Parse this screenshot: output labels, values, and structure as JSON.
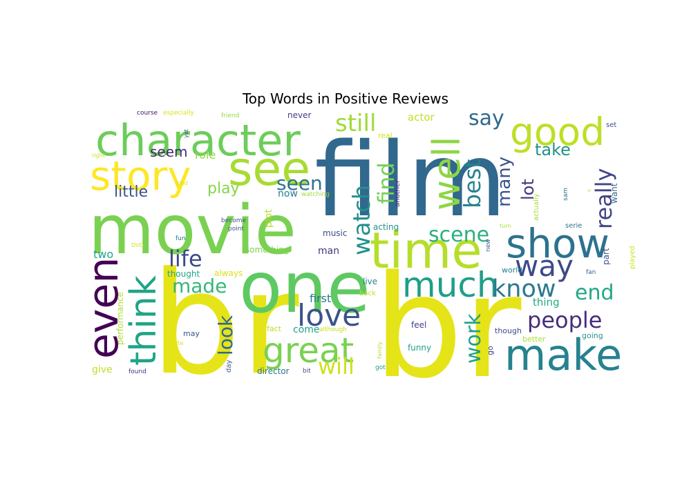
{
  "chart_data": {
    "type": "wordcloud",
    "title": "Top Words in Positive Reviews",
    "background": "#ffffff",
    "words": [
      {
        "text": "br",
        "color": "#e5e419"
      },
      {
        "text": "film",
        "color": "#31688e"
      },
      {
        "text": "movie",
        "color": "#7ad151"
      },
      {
        "text": "one",
        "color": "#5ec962"
      },
      {
        "text": "br",
        "color": "#e5e419"
      },
      {
        "text": "character",
        "color": "#6ccd5a"
      },
      {
        "text": "time",
        "color": "#b5de2b"
      },
      {
        "text": "see",
        "color": "#a8db34"
      },
      {
        "text": "story",
        "color": "#fde725"
      },
      {
        "text": "make",
        "color": "#26828e"
      },
      {
        "text": "show",
        "color": "#2c728e"
      },
      {
        "text": "good",
        "color": "#bddf26"
      },
      {
        "text": "well",
        "color": "#8ed645"
      },
      {
        "text": "much",
        "color": "#1f9e89"
      },
      {
        "text": "great",
        "color": "#7ad151"
      },
      {
        "text": "even",
        "color": "#440154"
      },
      {
        "text": "think",
        "color": "#20a486"
      },
      {
        "text": "love",
        "color": "#3b528b"
      },
      {
        "text": "way",
        "color": "#3e4989"
      },
      {
        "text": "people",
        "color": "#472d7b"
      },
      {
        "text": "still",
        "color": "#a0da39"
      },
      {
        "text": "watch",
        "color": "#21918c"
      },
      {
        "text": "know",
        "color": "#2a788e"
      },
      {
        "text": "scene",
        "color": "#2ab07f"
      },
      {
        "text": "best",
        "color": "#26828e"
      },
      {
        "text": "will",
        "color": "#cde11d"
      },
      {
        "text": "life",
        "color": "#3e4989"
      },
      {
        "text": "made",
        "color": "#35b779"
      },
      {
        "text": "end",
        "color": "#22a884"
      },
      {
        "text": "really",
        "color": "#414487"
      },
      {
        "text": "say",
        "color": "#31688e"
      },
      {
        "text": "look",
        "color": "#31688e"
      },
      {
        "text": "work",
        "color": "#1fa188"
      },
      {
        "text": "find",
        "color": "#75d054"
      },
      {
        "text": "many",
        "color": "#3b528b"
      },
      {
        "text": "seen",
        "color": "#2c728e"
      },
      {
        "text": "take",
        "color": "#21918c"
      },
      {
        "text": "lot",
        "color": "#46327e"
      },
      {
        "text": "little",
        "color": "#3b528b"
      },
      {
        "text": "play",
        "color": "#86d549"
      },
      {
        "text": "seem",
        "color": "#482878"
      },
      {
        "text": "role",
        "color": "#90d743"
      },
      {
        "text": "now",
        "color": "#287d8e"
      },
      {
        "text": "first",
        "color": "#2c728e"
      },
      {
        "text": "come",
        "color": "#1fa188"
      },
      {
        "text": "thing",
        "color": "#22a884"
      },
      {
        "text": "two",
        "color": "#20a486"
      },
      {
        "text": "plot",
        "color": "#b5de2b"
      },
      {
        "text": "actor",
        "color": "#c2df23"
      },
      {
        "text": "performance",
        "color": "#addc30"
      },
      {
        "text": "give",
        "color": "#bddf26"
      },
      {
        "text": "man",
        "color": "#46337e"
      },
      {
        "text": "part",
        "color": "#3b528b"
      },
      {
        "text": "want",
        "color": "#31688e"
      },
      {
        "text": "thought",
        "color": "#20a486"
      },
      {
        "text": "always",
        "color": "#d8e219"
      },
      {
        "text": "acting",
        "color": "#21918c"
      },
      {
        "text": "music",
        "color": "#3e4989"
      },
      {
        "text": "something",
        "color": "#7ad151"
      },
      {
        "text": "director",
        "color": "#2c728e"
      },
      {
        "text": "day",
        "color": "#39568c"
      },
      {
        "text": "may",
        "color": "#3b528b"
      },
      {
        "text": "feel",
        "color": "#433e85"
      },
      {
        "text": "funny",
        "color": "#1fa188"
      },
      {
        "text": "though",
        "color": "#3e4989"
      },
      {
        "text": "going",
        "color": "#21918c"
      },
      {
        "text": "better",
        "color": "#addc30"
      },
      {
        "text": "played",
        "color": "#cde11d"
      },
      {
        "text": "fan",
        "color": "#33638d"
      },
      {
        "text": "world",
        "color": "#277f8e"
      },
      {
        "text": "new",
        "color": "#3b528b"
      },
      {
        "text": "live",
        "color": "#25848e"
      },
      {
        "text": "back",
        "color": "#bddf26"
      },
      {
        "text": "never",
        "color": "#443983"
      },
      {
        "text": "real",
        "color": "#d2e21b"
      },
      {
        "text": "another",
        "color": "#472d7b"
      },
      {
        "text": "actually",
        "color": "#a8db34"
      },
      {
        "text": "sam",
        "color": "#2c728e"
      },
      {
        "text": "set",
        "color": "#3e4989"
      },
      {
        "text": "serie",
        "color": "#2c728e"
      },
      {
        "text": "turn",
        "color": "#a8db34"
      },
      {
        "text": "watching",
        "color": "#a0da39"
      },
      {
        "text": "fact",
        "color": "#b5de2b"
      },
      {
        "text": "although",
        "color": "#c8e020"
      },
      {
        "text": "family",
        "color": "#b5de2b"
      },
      {
        "text": "got",
        "color": "#1f9e89"
      },
      {
        "text": "bit",
        "color": "#3e4989"
      },
      {
        "text": "go",
        "color": "#3e4989"
      },
      {
        "text": "quite",
        "color": "#dde318"
      },
      {
        "text": "found",
        "color": "#46337e"
      },
      {
        "text": "become",
        "color": "#3b528b"
      },
      {
        "text": "point",
        "color": "#3b528b"
      },
      {
        "text": "fun",
        "color": "#2c728e"
      },
      {
        "text": "DVD",
        "color": "#d8e219"
      },
      {
        "text": "kind",
        "color": "#d2e21b"
      },
      {
        "text": "right",
        "color": "#cde11d"
      },
      {
        "text": "yet",
        "color": "#3b528b"
      },
      {
        "text": "course",
        "color": "#471164"
      },
      {
        "text": "especially",
        "color": "#d8e219"
      },
      {
        "text": "friend",
        "color": "#95d840"
      },
      {
        "text": "c",
        "color": "#b5de2b"
      }
    ]
  }
}
